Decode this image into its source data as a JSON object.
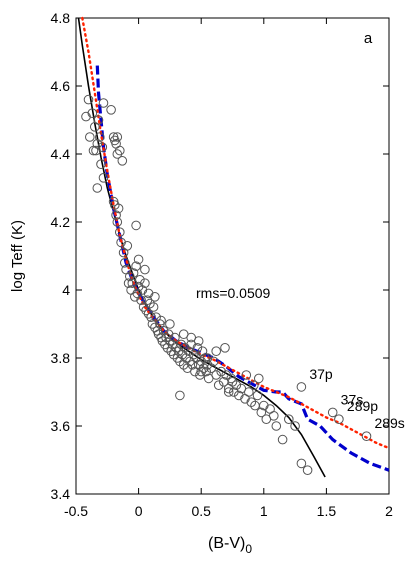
{
  "chart_data": {
    "type": "scatter",
    "panel_label": "a",
    "annotation": "rms=0.0509",
    "xlabel_main": "(B-V)",
    "xlabel_sub": "0",
    "ylabel": "log Teff (K)",
    "xlim": [
      -0.5,
      2
    ],
    "ylim": [
      3.4,
      4.8
    ],
    "x_ticks": [
      {
        "v": -0.5,
        "label": "-0.5"
      },
      {
        "v": 0,
        "label": "0"
      },
      {
        "v": 0.5,
        "label": "0.5"
      },
      {
        "v": 1,
        "label": "1"
      },
      {
        "v": 1.5,
        "label": "1.5"
      },
      {
        "v": 2,
        "label": "2"
      }
    ],
    "y_ticks": [
      {
        "v": 3.4,
        "label": "3.4"
      },
      {
        "v": 3.6,
        "label": "3.6"
      },
      {
        "v": 3.8,
        "label": "3.8"
      },
      {
        "v": 4.0,
        "label": "4"
      },
      {
        "v": 4.2,
        "label": "4.2"
      },
      {
        "v": 4.4,
        "label": "4.4"
      },
      {
        "v": 4.6,
        "label": "4.6"
      },
      {
        "v": 4.8,
        "label": "4.8"
      }
    ],
    "lines": [
      {
        "style": "solid",
        "color": "#000000",
        "points": [
          [
            -0.48,
            4.8
          ],
          [
            -0.45,
            4.72
          ],
          [
            -0.4,
            4.6
          ],
          [
            -0.35,
            4.49
          ],
          [
            -0.3,
            4.39
          ],
          [
            -0.25,
            4.3
          ],
          [
            -0.2,
            4.23
          ],
          [
            -0.15,
            4.16
          ],
          [
            -0.1,
            4.1
          ],
          [
            -0.05,
            4.05
          ],
          [
            0.0,
            4.0
          ],
          [
            0.05,
            3.96
          ],
          [
            0.1,
            3.93
          ],
          [
            0.2,
            3.88
          ],
          [
            0.3,
            3.845
          ],
          [
            0.4,
            3.82
          ],
          [
            0.5,
            3.795
          ],
          [
            0.6,
            3.775
          ],
          [
            0.7,
            3.755
          ],
          [
            0.8,
            3.735
          ],
          [
            0.9,
            3.715
          ],
          [
            1.0,
            3.69
          ],
          [
            1.1,
            3.66
          ],
          [
            1.2,
            3.625
          ],
          [
            1.3,
            3.575
          ],
          [
            1.4,
            3.51
          ],
          [
            1.49,
            3.45
          ]
        ]
      },
      {
        "style": "dashed",
        "color": "#0000cc",
        "points": [
          [
            -0.33,
            4.66
          ],
          [
            -0.32,
            4.58
          ],
          [
            -0.3,
            4.5
          ],
          [
            -0.28,
            4.42
          ],
          [
            -0.25,
            4.34
          ],
          [
            -0.2,
            4.24
          ],
          [
            -0.15,
            4.16
          ],
          [
            -0.1,
            4.08
          ],
          [
            -0.05,
            4.03
          ],
          [
            0.0,
            3.99
          ],
          [
            0.05,
            3.96
          ],
          [
            0.1,
            3.93
          ],
          [
            0.2,
            3.88
          ],
          [
            0.3,
            3.85
          ],
          [
            0.4,
            3.83
          ],
          [
            0.5,
            3.815
          ],
          [
            0.6,
            3.8
          ],
          [
            0.7,
            3.775
          ],
          [
            0.8,
            3.745
          ],
          [
            0.9,
            3.725
          ],
          [
            1.0,
            3.705
          ],
          [
            1.1,
            3.7
          ],
          [
            1.15,
            3.7
          ],
          [
            1.2,
            3.68
          ],
          [
            1.3,
            3.665
          ],
          [
            1.35,
            3.62
          ],
          [
            1.45,
            3.6
          ],
          [
            1.55,
            3.56
          ],
          [
            1.7,
            3.52
          ],
          [
            1.85,
            3.49
          ],
          [
            2.0,
            3.47
          ]
        ]
      },
      {
        "style": "dotted",
        "color": "#ff2200",
        "points": [
          [
            -0.45,
            4.8
          ],
          [
            -0.4,
            4.7
          ],
          [
            -0.35,
            4.58
          ],
          [
            -0.3,
            4.46
          ],
          [
            -0.25,
            4.35
          ],
          [
            -0.2,
            4.25
          ],
          [
            -0.15,
            4.16
          ],
          [
            -0.1,
            4.09
          ],
          [
            -0.05,
            4.03
          ],
          [
            0.0,
            3.985
          ],
          [
            0.05,
            3.95
          ],
          [
            0.1,
            3.925
          ],
          [
            0.2,
            3.88
          ],
          [
            0.3,
            3.85
          ],
          [
            0.4,
            3.83
          ],
          [
            0.5,
            3.81
          ],
          [
            0.6,
            3.795
          ],
          [
            0.7,
            3.775
          ],
          [
            0.8,
            3.755
          ],
          [
            0.9,
            3.735
          ],
          [
            1.0,
            3.715
          ],
          [
            1.1,
            3.7
          ],
          [
            1.2,
            3.685
          ],
          [
            1.3,
            3.665
          ],
          [
            1.4,
            3.645
          ],
          [
            1.5,
            3.625
          ],
          [
            1.6,
            3.61
          ],
          [
            1.7,
            3.59
          ],
          [
            1.8,
            3.57
          ],
          [
            1.9,
            3.55
          ],
          [
            2.0,
            3.535
          ]
        ]
      }
    ],
    "points": [
      [
        -0.42,
        4.51
      ],
      [
        -0.4,
        4.56
      ],
      [
        -0.39,
        4.45
      ],
      [
        -0.37,
        4.52
      ],
      [
        -0.36,
        4.41
      ],
      [
        -0.35,
        4.48
      ],
      [
        -0.34,
        4.41
      ],
      [
        -0.33,
        4.3
      ],
      [
        -0.33,
        4.43
      ],
      [
        -0.32,
        4.5
      ],
      [
        -0.31,
        4.45
      ],
      [
        -0.3,
        4.37
      ],
      [
        -0.29,
        4.42
      ],
      [
        -0.28,
        4.33
      ],
      [
        -0.22,
        4.53
      ],
      [
        -0.2,
        4.45
      ],
      [
        -0.19,
        4.44
      ],
      [
        -0.18,
        4.43
      ],
      [
        -0.17,
        4.45
      ],
      [
        -0.15,
        4.41
      ],
      [
        -0.13,
        4.38
      ],
      [
        -0.2,
        4.26
      ],
      [
        -0.19,
        4.25
      ],
      [
        -0.18,
        4.22
      ],
      [
        -0.17,
        4.2
      ],
      [
        -0.16,
        4.24
      ],
      [
        -0.15,
        4.17
      ],
      [
        -0.14,
        4.14
      ],
      [
        -0.12,
        4.11
      ],
      [
        -0.11,
        4.08
      ],
      [
        -0.1,
        4.06
      ],
      [
        -0.09,
        4.13
      ],
      [
        -0.08,
        4.02
      ],
      [
        -0.07,
        4.04
      ],
      [
        -0.06,
        4.0
      ],
      [
        -0.05,
        4.02
      ],
      [
        -0.04,
        4.05
      ],
      [
        -0.03,
        3.98
      ],
      [
        -0.02,
        4.07
      ],
      [
        -0.01,
        3.99
      ],
      [
        0.0,
        4.01
      ],
      [
        0.01,
        4.03
      ],
      [
        0.02,
        3.97
      ],
      [
        0.03,
        4.0
      ],
      [
        0.04,
        3.95
      ],
      [
        0.05,
        4.02
      ],
      [
        0.06,
        3.94
      ],
      [
        0.07,
        3.97
      ],
      [
        0.08,
        3.93
      ],
      [
        0.09,
        3.96
      ],
      [
        0.1,
        3.92
      ],
      [
        0.11,
        3.9
      ],
      [
        0.12,
        3.95
      ],
      [
        0.13,
        3.89
      ],
      [
        0.14,
        3.92
      ],
      [
        0.15,
        3.88
      ],
      [
        0.16,
        3.87
      ],
      [
        0.17,
        3.9
      ],
      [
        0.18,
        3.86
      ],
      [
        0.19,
        3.85
      ],
      [
        0.2,
        3.88
      ],
      [
        0.21,
        3.84
      ],
      [
        0.22,
        3.86
      ],
      [
        0.23,
        3.83
      ],
      [
        0.24,
        3.87
      ],
      [
        0.25,
        3.85
      ],
      [
        0.26,
        3.82
      ],
      [
        0.27,
        3.84
      ],
      [
        0.28,
        3.81
      ],
      [
        0.29,
        3.86
      ],
      [
        0.3,
        3.83
      ],
      [
        0.31,
        3.8
      ],
      [
        0.32,
        3.82
      ],
      [
        0.33,
        3.79
      ],
      [
        0.34,
        3.84
      ],
      [
        0.35,
        3.81
      ],
      [
        0.36,
        3.78
      ],
      [
        0.37,
        3.83
      ],
      [
        0.38,
        3.8
      ],
      [
        0.39,
        3.77
      ],
      [
        0.4,
        3.82
      ],
      [
        0.41,
        3.79
      ],
      [
        0.42,
        3.84
      ],
      [
        0.43,
        3.78
      ],
      [
        0.44,
        3.81
      ],
      [
        0.45,
        3.76
      ],
      [
        0.46,
        3.8
      ],
      [
        0.47,
        3.83
      ],
      [
        0.48,
        3.78
      ],
      [
        0.49,
        3.75
      ],
      [
        0.5,
        3.79
      ],
      [
        0.51,
        3.82
      ],
      [
        0.52,
        3.77
      ],
      [
        0.53,
        3.8
      ],
      [
        0.54,
        3.76
      ],
      [
        0.55,
        3.78
      ],
      [
        0.56,
        3.74
      ],
      [
        0.58,
        3.77
      ],
      [
        0.6,
        3.79
      ],
      [
        0.62,
        3.75
      ],
      [
        0.64,
        3.72
      ],
      [
        0.66,
        3.76
      ],
      [
        0.68,
        3.73
      ],
      [
        0.7,
        3.75
      ],
      [
        0.72,
        3.71
      ],
      [
        0.74,
        3.74
      ],
      [
        0.76,
        3.7
      ],
      [
        0.78,
        3.72
      ],
      [
        0.8,
        3.69
      ],
      [
        0.82,
        3.71
      ],
      [
        0.85,
        3.68
      ],
      [
        0.88,
        3.7
      ],
      [
        0.9,
        3.67
      ],
      [
        0.93,
        3.66
      ],
      [
        0.95,
        3.69
      ],
      [
        0.98,
        3.64
      ],
      [
        1.0,
        3.66
      ],
      [
        1.02,
        3.62
      ],
      [
        1.05,
        3.65
      ],
      [
        1.08,
        3.63
      ],
      [
        1.1,
        3.6
      ],
      [
        1.15,
        3.56
      ],
      [
        1.2,
        3.62
      ],
      [
        1.25,
        3.6
      ],
      [
        1.3,
        3.49
      ],
      [
        1.35,
        3.47
      ],
      [
        -0.02,
        4.19
      ],
      [
        0.0,
        4.09
      ],
      [
        0.05,
        4.06
      ],
      [
        0.33,
        3.69
      ],
      [
        0.5,
        3.76
      ],
      [
        0.55,
        3.8
      ],
      [
        0.62,
        3.82
      ],
      [
        0.69,
        3.83
      ],
      [
        0.72,
        3.7
      ],
      [
        0.75,
        3.73
      ],
      [
        0.86,
        3.75
      ],
      [
        0.92,
        3.72
      ],
      [
        0.96,
        3.74
      ],
      [
        -0.17,
        4.4
      ],
      [
        -0.28,
        4.55
      ],
      [
        0.25,
        3.9
      ],
      [
        0.18,
        3.91
      ],
      [
        0.13,
        3.98
      ],
      [
        0.08,
        3.99
      ],
      [
        0.36,
        3.87
      ],
      [
        0.42,
        3.86
      ],
      [
        0.48,
        3.85
      ]
    ],
    "labeled_points": [
      {
        "x": 1.3,
        "y": 3.715,
        "label": "37p"
      },
      {
        "x": 1.55,
        "y": 3.64,
        "label": "37s"
      },
      {
        "x": 1.6,
        "y": 3.62,
        "label": "289p"
      },
      {
        "x": 1.82,
        "y": 3.57,
        "label": "289s"
      }
    ]
  }
}
